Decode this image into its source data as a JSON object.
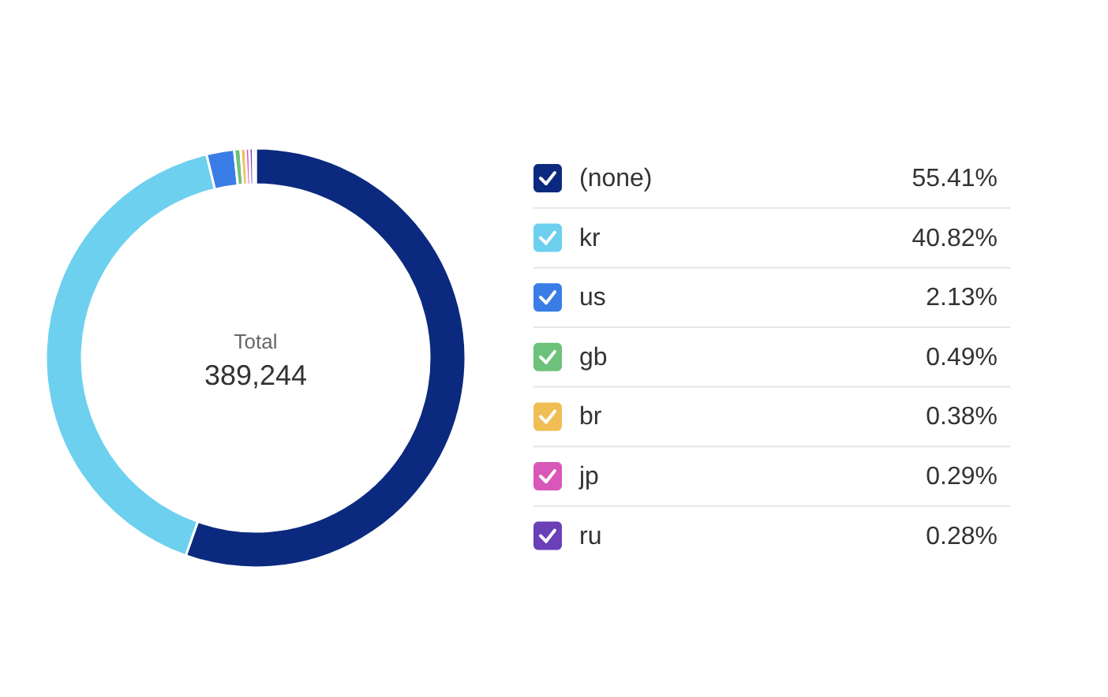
{
  "chart_data": {
    "type": "donut",
    "categories": [
      "(none)",
      "kr",
      "us",
      "gb",
      "br",
      "jp",
      "ru",
      null
    ],
    "values": [
      55.41,
      40.82,
      2.13,
      0.49,
      0.38,
      0.29,
      0.28,
      0.2
    ],
    "value_labels": [
      "55.41%",
      "40.82%",
      "2.13%",
      "0.49%",
      "0.38%",
      "0.29%",
      "0.28%",
      null
    ],
    "colors": [
      "#0b2a7f",
      "#6dd0ee",
      "#3a7de6",
      "#6cc27a",
      "#f0be55",
      "#d957b8",
      "#6a3fb8",
      "#d9a0e6"
    ],
    "annotations": [
      "Total",
      "389,244"
    ],
    "legend": "right"
  }
}
